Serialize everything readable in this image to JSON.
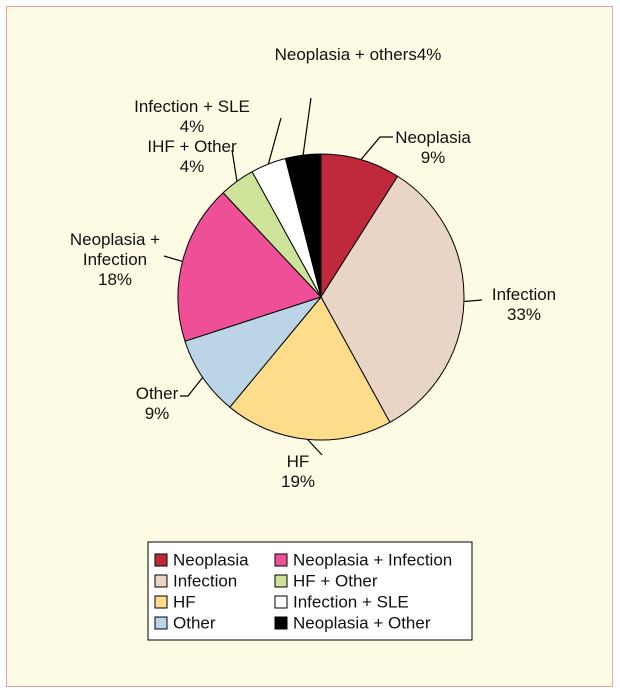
{
  "chart_data": {
    "type": "pie",
    "categories": [
      "Neoplasia",
      "Infection",
      "HF",
      "Other",
      "Neoplasia + Infection",
      "IHF + Other",
      "Infection + SLE",
      "Neoplasia + others"
    ],
    "values": [
      9,
      33,
      19,
      9,
      18,
      4,
      4,
      4
    ],
    "value_labels": [
      "9%",
      "33%",
      "19%",
      "9%",
      "18%",
      "4%",
      "4%",
      "4%"
    ],
    "colors": [
      "#c0283c",
      "#e8d5c6",
      "#fddc8c",
      "#bcd5e6",
      "#ee4f96",
      "#cde39a",
      "#ffffff",
      "#000000"
    ],
    "legend_labels": [
      "Neoplasia",
      "Infection",
      "HF",
      "Other",
      "Neoplasia + Infection",
      "HF + Other",
      "Infection + SLE",
      "Neoplasia + Other"
    ]
  }
}
